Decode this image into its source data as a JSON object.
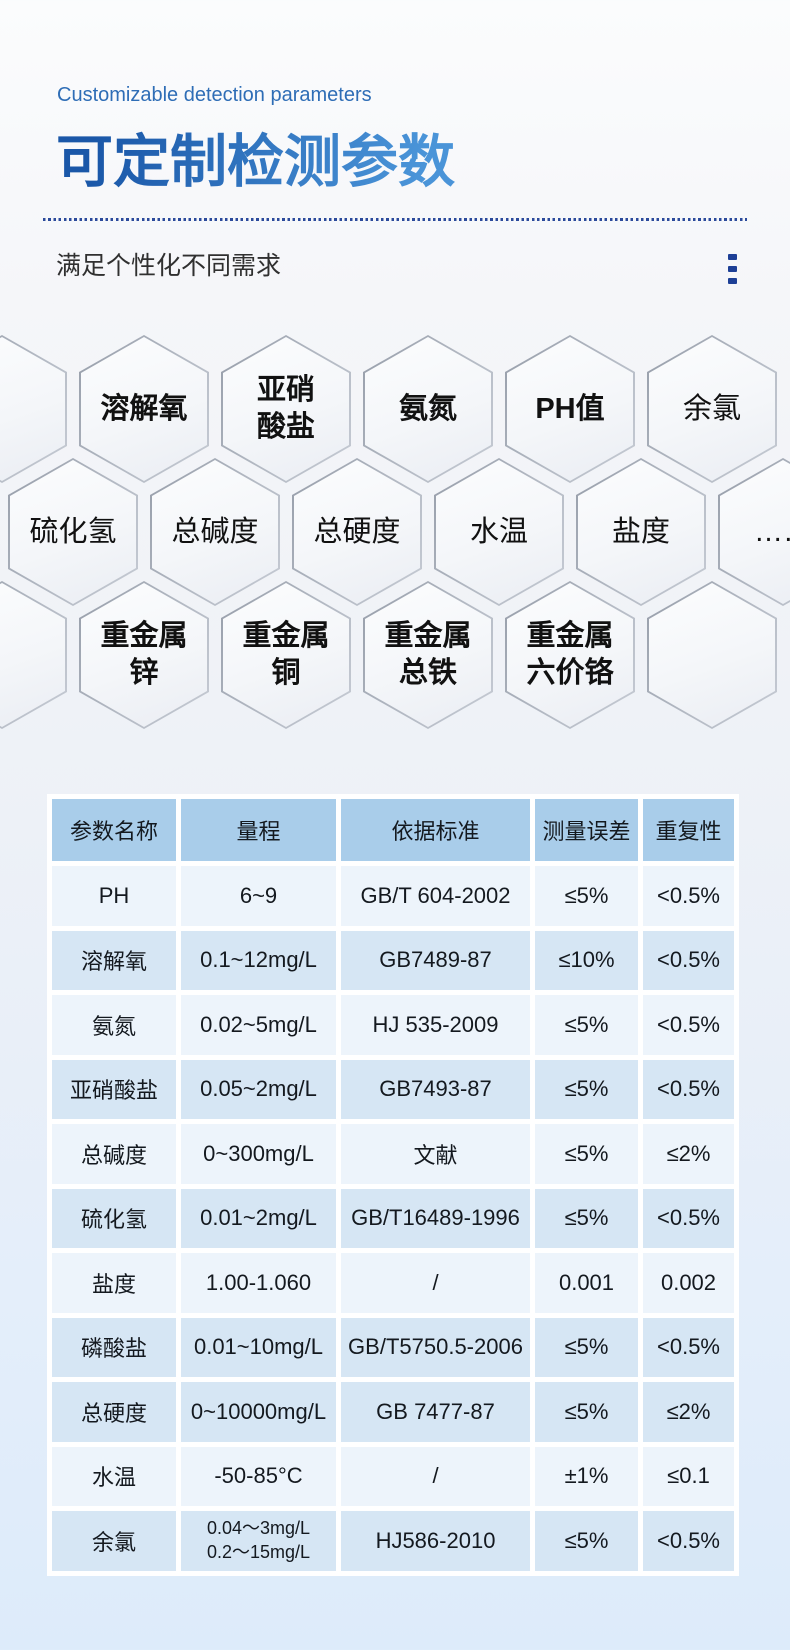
{
  "header": {
    "eyebrow": "Customizable detection parameters",
    "title": "可定制检测参数",
    "subtitle": "满足个性化不同需求"
  },
  "hexagons": {
    "rows": [
      {
        "offset": false,
        "cells": [
          {
            "label": "",
            "bold": false
          },
          {
            "label": "溶解氧",
            "bold": true
          },
          {
            "label": "亚硝\n酸盐",
            "bold": true
          },
          {
            "label": "氨氮",
            "bold": true
          },
          {
            "label": "PH值",
            "bold": true
          },
          {
            "label": "余氯",
            "bold": false
          }
        ]
      },
      {
        "offset": true,
        "cells": [
          {
            "label": "硫化氢",
            "bold": false
          },
          {
            "label": "总碱度",
            "bold": false
          },
          {
            "label": "总硬度",
            "bold": false
          },
          {
            "label": "水温",
            "bold": false
          },
          {
            "label": "盐度",
            "bold": false
          },
          {
            "label": "……",
            "bold": false
          }
        ]
      },
      {
        "offset": false,
        "cells": [
          {
            "label": "",
            "bold": false
          },
          {
            "label": "重金属\n锌",
            "bold": true
          },
          {
            "label": "重金属\n铜",
            "bold": true
          },
          {
            "label": "重金属\n总铁",
            "bold": true
          },
          {
            "label": "重金属\n六价铬",
            "bold": true
          },
          {
            "label": "",
            "bold": false
          }
        ]
      }
    ]
  },
  "table": {
    "headers": [
      "参数名称",
      "量程",
      "依据标准",
      "测量误差",
      "重复性"
    ],
    "rows": [
      [
        "PH",
        "6~9",
        "GB/T 604-2002",
        "≤5%",
        "<0.5%"
      ],
      [
        "溶解氧",
        "0.1~12mg/L",
        "GB7489-87",
        "≤10%",
        "<0.5%"
      ],
      [
        "氨氮",
        "0.02~5mg/L",
        "HJ 535-2009",
        "≤5%",
        "<0.5%"
      ],
      [
        "亚硝酸盐",
        "0.05~2mg/L",
        "GB7493-87",
        "≤5%",
        "<0.5%"
      ],
      [
        "总碱度",
        "0~300mg/L",
        "文献",
        "≤5%",
        "≤2%"
      ],
      [
        "硫化氢",
        "0.01~2mg/L",
        "GB/T16489-1996",
        "≤5%",
        "<0.5%"
      ],
      [
        "盐度",
        "1.00-1.060",
        "/",
        "0.001",
        "0.002"
      ],
      [
        "磷酸盐",
        "0.01~10mg/L",
        "GB/T5750.5-2006",
        "≤5%",
        "<0.5%"
      ],
      [
        "总硬度",
        "0~10000mg/L",
        "GB 7477-87",
        "≤5%",
        "≤2%"
      ],
      [
        "水温",
        "-50-85°C",
        "/",
        "±1%",
        "≤0.1"
      ],
      [
        "余氯",
        "0.04～3mg/L\n0.2～15mg/L",
        "HJ586-2010",
        "≤5%",
        "<0.5%"
      ]
    ]
  },
  "colors": {
    "accent_blue": "#2e6db6",
    "header_bg": "#a9cdea",
    "row_light": "#edf4fb",
    "row_blue": "#d6e6f4"
  }
}
